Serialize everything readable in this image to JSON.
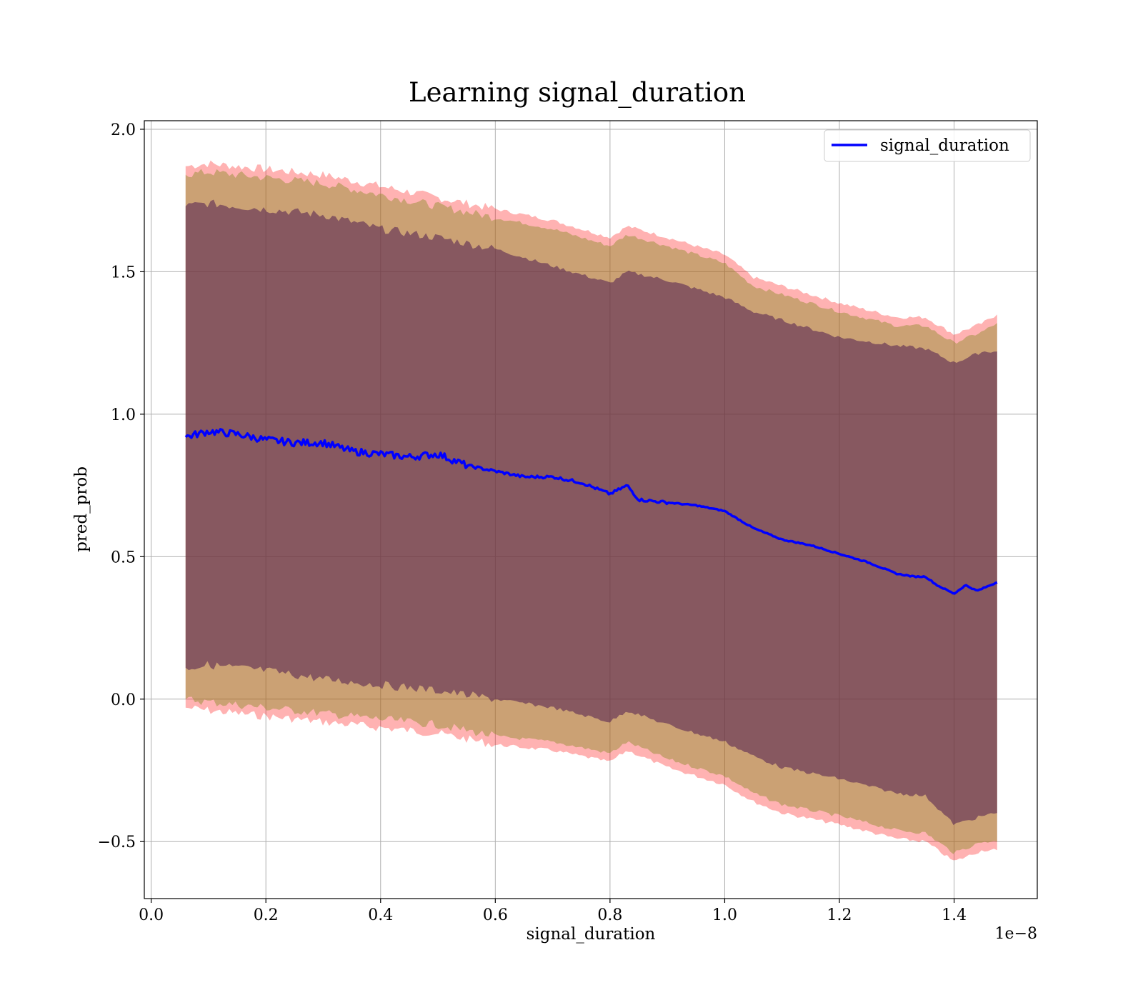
{
  "chart_data": {
    "type": "line",
    "title": "Learning signal_duration",
    "xlabel": "signal_duration",
    "ylabel": "pred_prob",
    "x_offset_label": "1e−8",
    "x_tick_labels": [
      "0.0",
      "0.2",
      "0.4",
      "0.6",
      "0.8",
      "1.0",
      "1.2",
      "1.4"
    ],
    "y_tick_labels": [
      "−0.5",
      "0.0",
      "0.5",
      "1.0",
      "1.5",
      "2.0"
    ],
    "x_ticks": [
      0.0,
      0.2,
      0.4,
      0.6,
      0.8,
      1.0,
      1.2,
      1.4
    ],
    "y_ticks": [
      -0.5,
      0.0,
      0.5,
      1.0,
      1.5,
      2.0
    ],
    "xlim": [
      -0.012,
      1.545
    ],
    "ylim": [
      -0.7,
      2.03
    ],
    "grid": true,
    "legend_position": "top-right",
    "colors": {
      "line": "#0000ff",
      "band_outer": "#ff0000",
      "band_middle": "#8c8c28",
      "band_inner": "#501e50",
      "grid": "#b0b0b0"
    },
    "series": [
      {
        "name": "signal_duration",
        "x": [
          0.06,
          0.1,
          0.15,
          0.2,
          0.25,
          0.3,
          0.35,
          0.4,
          0.45,
          0.5,
          0.55,
          0.6,
          0.65,
          0.7,
          0.75,
          0.8,
          0.83,
          0.85,
          0.9,
          0.95,
          1.0,
          1.05,
          1.1,
          1.15,
          1.2,
          1.25,
          1.3,
          1.33,
          1.35,
          1.37,
          1.4,
          1.42,
          1.44,
          1.475
        ],
        "y": [
          0.92,
          0.94,
          0.93,
          0.91,
          0.9,
          0.9,
          0.87,
          0.86,
          0.85,
          0.86,
          0.82,
          0.8,
          0.78,
          0.78,
          0.76,
          0.72,
          0.75,
          0.7,
          0.69,
          0.68,
          0.66,
          0.6,
          0.56,
          0.54,
          0.51,
          0.48,
          0.44,
          0.43,
          0.43,
          0.4,
          0.37,
          0.4,
          0.38,
          0.41
        ]
      }
    ],
    "bands": [
      {
        "x": [
          0.06,
          0.1,
          0.2,
          0.3,
          0.4,
          0.5,
          0.6,
          0.7,
          0.8,
          0.83,
          0.9,
          1.0,
          1.05,
          1.1,
          1.2,
          1.3,
          1.35,
          1.4,
          1.45,
          1.475
        ],
        "lower": [
          -0.03,
          -0.04,
          -0.06,
          -0.08,
          -0.1,
          -0.12,
          -0.16,
          -0.18,
          -0.22,
          -0.18,
          -0.24,
          -0.3,
          -0.36,
          -0.4,
          -0.44,
          -0.49,
          -0.5,
          -0.57,
          -0.53,
          -0.53
        ],
        "upper": [
          1.87,
          1.88,
          1.86,
          1.84,
          1.8,
          1.76,
          1.72,
          1.68,
          1.62,
          1.66,
          1.62,
          1.56,
          1.48,
          1.45,
          1.39,
          1.34,
          1.34,
          1.28,
          1.32,
          1.35
        ]
      },
      {
        "x": [
          0.06,
          0.1,
          0.2,
          0.3,
          0.4,
          0.5,
          0.6,
          0.7,
          0.8,
          0.83,
          0.9,
          1.0,
          1.05,
          1.1,
          1.2,
          1.3,
          1.35,
          1.4,
          1.45,
          1.475
        ],
        "lower": [
          0.0,
          -0.01,
          -0.03,
          -0.05,
          -0.07,
          -0.09,
          -0.13,
          -0.15,
          -0.19,
          -0.15,
          -0.21,
          -0.27,
          -0.33,
          -0.37,
          -0.41,
          -0.46,
          -0.47,
          -0.54,
          -0.5,
          -0.5
        ],
        "upper": [
          1.84,
          1.85,
          1.83,
          1.81,
          1.77,
          1.73,
          1.69,
          1.65,
          1.59,
          1.63,
          1.59,
          1.53,
          1.45,
          1.42,
          1.36,
          1.31,
          1.31,
          1.25,
          1.29,
          1.32
        ]
      },
      {
        "x": [
          0.06,
          0.1,
          0.2,
          0.3,
          0.4,
          0.5,
          0.6,
          0.7,
          0.8,
          0.83,
          0.9,
          1.0,
          1.05,
          1.1,
          1.2,
          1.3,
          1.35,
          1.4,
          1.45,
          1.475
        ],
        "lower": [
          0.11,
          0.12,
          0.1,
          0.07,
          0.05,
          0.03,
          0.0,
          -0.03,
          -0.08,
          -0.04,
          -0.09,
          -0.15,
          -0.2,
          -0.24,
          -0.28,
          -0.33,
          -0.34,
          -0.44,
          -0.41,
          -0.4
        ],
        "upper": [
          1.73,
          1.74,
          1.72,
          1.7,
          1.65,
          1.62,
          1.58,
          1.52,
          1.46,
          1.5,
          1.47,
          1.41,
          1.36,
          1.33,
          1.27,
          1.24,
          1.23,
          1.18,
          1.22,
          1.22
        ]
      }
    ]
  }
}
